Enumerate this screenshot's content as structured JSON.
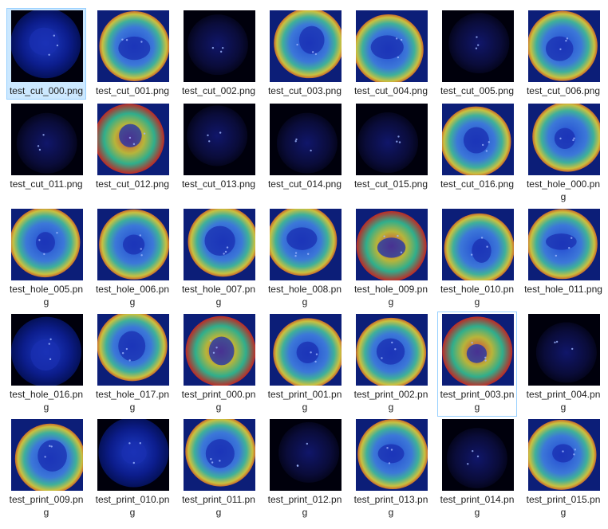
{
  "folder_view": {
    "selected_file": "test_cut_000.png",
    "hovered_file": "test_print_003.png",
    "files": [
      {
        "name": "test_cut_000.png",
        "style": "blue"
      },
      {
        "name": "test_cut_001.png",
        "style": "ring"
      },
      {
        "name": "test_cut_002.png",
        "style": "dark"
      },
      {
        "name": "test_cut_003.png",
        "style": "ring"
      },
      {
        "name": "test_cut_004.png",
        "style": "ring"
      },
      {
        "name": "test_cut_005.png",
        "style": "dark"
      },
      {
        "name": "test_cut_006.png",
        "style": "ring"
      },
      {
        "name": "test_cut_011.png",
        "style": "dark"
      },
      {
        "name": "test_cut_012.png",
        "style": "hot"
      },
      {
        "name": "test_cut_013.png",
        "style": "dark"
      },
      {
        "name": "test_cut_014.png",
        "style": "dark"
      },
      {
        "name": "test_cut_015.png",
        "style": "dark"
      },
      {
        "name": "test_cut_016.png",
        "style": "ring"
      },
      {
        "name": "test_hole_000.png",
        "style": "ring"
      },
      {
        "name": "test_hole_005.png",
        "style": "ring"
      },
      {
        "name": "test_hole_006.png",
        "style": "ring"
      },
      {
        "name": "test_hole_007.png",
        "style": "ring"
      },
      {
        "name": "test_hole_008.png",
        "style": "ring"
      },
      {
        "name": "test_hole_009.png",
        "style": "hot"
      },
      {
        "name": "test_hole_010.png",
        "style": "ring"
      },
      {
        "name": "test_hole_011.png",
        "style": "ring"
      },
      {
        "name": "test_hole_016.png",
        "style": "blue"
      },
      {
        "name": "test_hole_017.png",
        "style": "ring"
      },
      {
        "name": "test_print_000.png",
        "style": "hot"
      },
      {
        "name": "test_print_001.png",
        "style": "ring"
      },
      {
        "name": "test_print_002.png",
        "style": "ring"
      },
      {
        "name": "test_print_003.png",
        "style": "hot"
      },
      {
        "name": "test_print_004.png",
        "style": "dark"
      },
      {
        "name": "test_print_009.png",
        "style": "ring"
      },
      {
        "name": "test_print_010.png",
        "style": "blue"
      },
      {
        "name": "test_print_011.png",
        "style": "ring"
      },
      {
        "name": "test_print_012.png",
        "style": "dark"
      },
      {
        "name": "test_print_013.png",
        "style": "ring"
      },
      {
        "name": "test_print_014.png",
        "style": "dark"
      },
      {
        "name": "test_print_015.png",
        "style": "ring"
      }
    ]
  }
}
